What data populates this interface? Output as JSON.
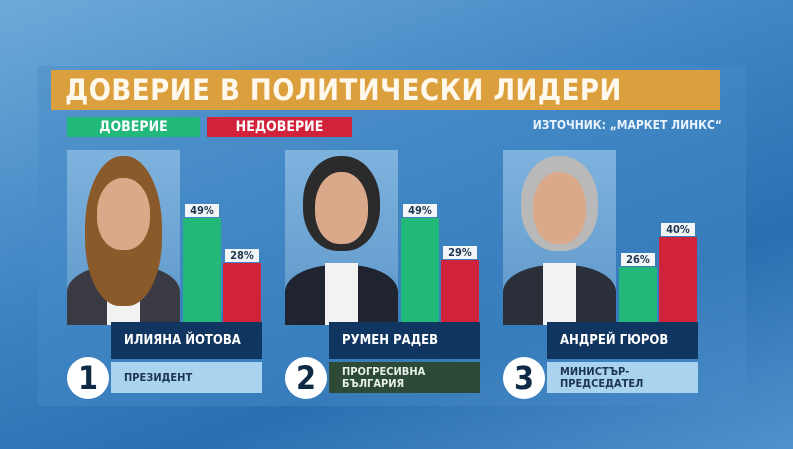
{
  "title": "ДОВЕРИЕ В ПОЛИТИЧЕСКИ ЛИДЕРИ",
  "source": "ИЗТОЧНИК: „МАРКЕТ ЛИНКС“",
  "legend": {
    "trust": "ДОВЕРИЕ",
    "distrust": "НЕДОВЕРИЕ"
  },
  "colors": {
    "trust": "#21b87a",
    "distrust": "#d0223a",
    "title_bar": "#dba03d",
    "name_box": "#0f3560"
  },
  "chart_data": {
    "type": "bar",
    "title": "ДОВЕРИЕ В ПОЛИТИЧЕСКИ ЛИДЕРИ",
    "categories": [
      "ИЛИЯНА ЙОТОВА",
      "РУМЕН РАДЕВ",
      "АНДРЕЙ ГЮРОВ"
    ],
    "series": [
      {
        "name": "ДОВЕРИЕ",
        "values": [
          49,
          49,
          26
        ]
      },
      {
        "name": "НЕДОВЕРИЕ",
        "values": [
          28,
          29,
          40
        ]
      }
    ],
    "unit": "%",
    "legend": "top-left",
    "grid": false
  },
  "leaders": [
    {
      "rank": "1",
      "name": "ИЛИЯНА ЙОТОВА",
      "role": "ПРЕЗИДЕНТ",
      "trust_label": "49%",
      "distrust_label": "28%",
      "role_bg": "#a9d3ee",
      "role_color": "#1d3550"
    },
    {
      "rank": "2",
      "name": "РУМЕН РАДЕВ",
      "role": "ПРОГРЕСИВНА БЪЛГАРИЯ",
      "trust_label": "49%",
      "distrust_label": "29%",
      "role_bg": "#2c4a36",
      "role_color": "#e8efe8"
    },
    {
      "rank": "3",
      "name": "АНДРЕЙ ГЮРОВ",
      "role": "МИНИСТЪР-ПРЕДСЕДАТЕЛ",
      "trust_label": "26%",
      "distrust_label": "40%",
      "role_bg": "#a9d3ee",
      "role_color": "#1d3550"
    }
  ]
}
